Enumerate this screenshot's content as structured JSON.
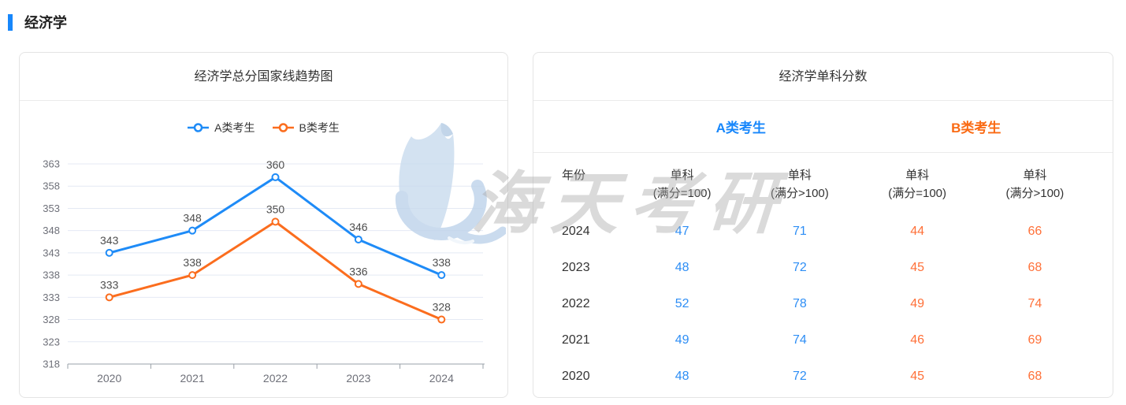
{
  "page": {
    "title": "经济学",
    "accent_color": "#1787fb"
  },
  "chart_data": {
    "type": "line",
    "title": "经济学总分国家线趋势图",
    "categories": [
      "2020",
      "2021",
      "2022",
      "2023",
      "2024"
    ],
    "series": [
      {
        "name": "A类考生",
        "color": "#1e8bf7",
        "values": [
          343,
          348,
          360,
          346,
          338
        ]
      },
      {
        "name": "B类考生",
        "color": "#fb6d1e",
        "values": [
          333,
          338,
          350,
          336,
          328
        ]
      }
    ],
    "ylim": [
      318,
      363
    ],
    "ytick_step": 5,
    "yticks": [
      318,
      323,
      328,
      333,
      338,
      343,
      348,
      353,
      358,
      363
    ],
    "grid": true,
    "legend_position": "top",
    "xlabel": "",
    "ylabel": "",
    "label_color": "#4d4d4d",
    "axis_label_color": "#6e7079",
    "gridline_color": "#e4e9f4",
    "axis_line_color": "#9aa0a8"
  },
  "table": {
    "title": "经济学单科分数",
    "year_header": "年份",
    "groups": [
      {
        "label": "A类考生",
        "color": "#1787fb",
        "value_color": "#2e8ef5"
      },
      {
        "label": "B类考生",
        "color": "#fa6a13",
        "value_color": "#ff7038"
      }
    ],
    "sub_headers": [
      {
        "line1": "单科",
        "line2": "(满分=100)",
        "group": 0
      },
      {
        "line1": "单科",
        "line2": "(满分>100)",
        "group": 0
      },
      {
        "line1": "单科",
        "line2": "(满分=100)",
        "group": 1
      },
      {
        "line1": "单科",
        "line2": "(满分>100)",
        "group": 1
      }
    ],
    "rows": [
      {
        "year": "2024",
        "values": [
          47,
          71,
          44,
          66
        ]
      },
      {
        "year": "2023",
        "values": [
          48,
          72,
          45,
          68
        ]
      },
      {
        "year": "2022",
        "values": [
          52,
          78,
          49,
          74
        ]
      },
      {
        "year": "2021",
        "values": [
          49,
          74,
          46,
          69
        ]
      },
      {
        "year": "2020",
        "values": [
          48,
          72,
          45,
          68
        ]
      }
    ]
  },
  "watermark": {
    "text": "海天考研",
    "logo": "haitian-sail-logo"
  }
}
